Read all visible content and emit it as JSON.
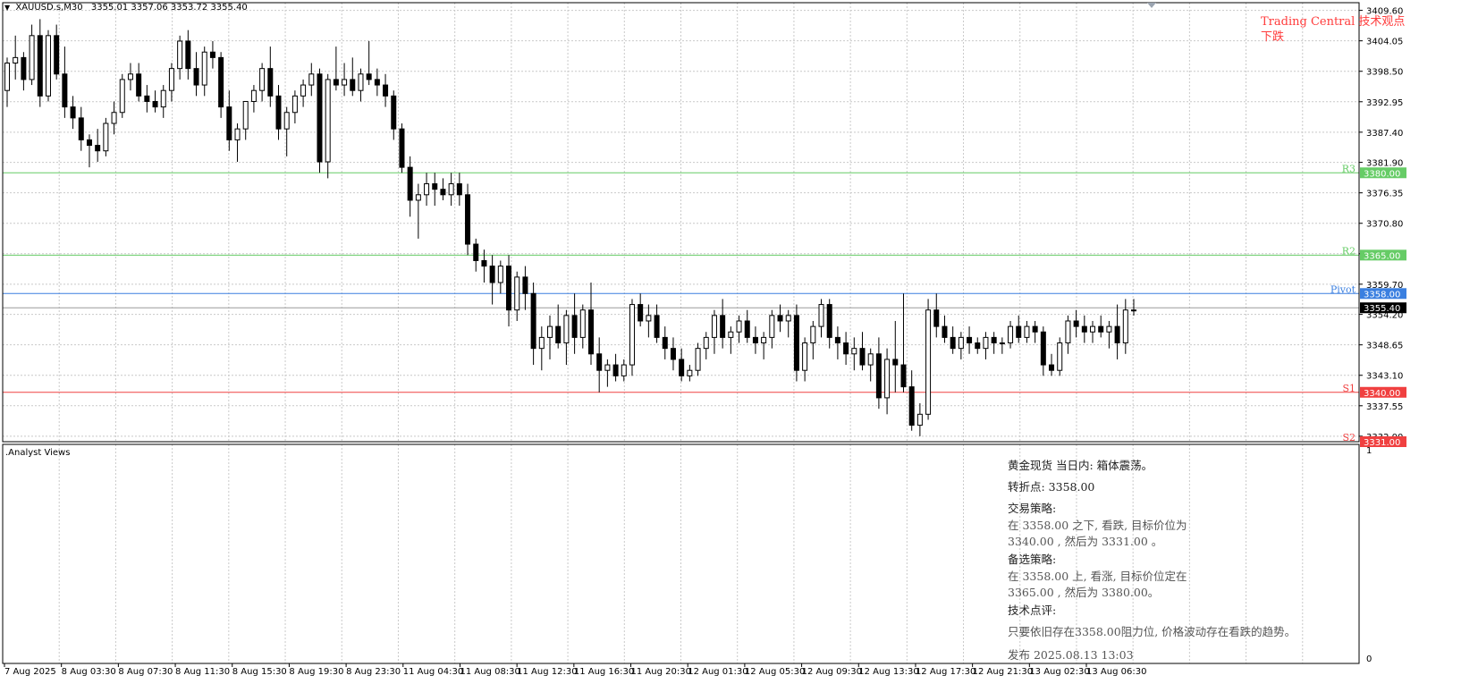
{
  "chart_header": {
    "symbol_timeframe": "XAUUSD.s,M30",
    "ohlc": "3355.01 3357.06 3353.72 3355.40",
    "dropdown_glyph": "▼"
  },
  "trading_central": {
    "title": "Trading Central 技术观点",
    "view": "下跌"
  },
  "subwindow": {
    "title": ".Analyst Views",
    "scale_top": "1",
    "scale_bottom": "0"
  },
  "analysis": {
    "line1": "黄金现货 当日内: 箱体震荡。",
    "line2": "转折点: 3358.00",
    "line3": "交易策略:",
    "line4": "在 3358.00 之下, 看跌, 目标价位为",
    "line5": "3340.00 , 然后为 3331.00 。",
    "line6": "备选策略:",
    "line7": "在 3358.00  上, 看涨, 目标价位定在",
    "line8": "3365.00 , 然后为 3380.00。",
    "line9": "技术点评:",
    "line10": "只要依旧存在3358.00阻力位, 价格波动存在看跌的趋势。",
    "line11": "发布 2025.08.13 13:03"
  },
  "colors": {
    "grid": "#c9c9c9",
    "r3": "#66cc66",
    "r2": "#66cc66",
    "pivot": "#3a7fe0",
    "s1": "#f04040",
    "s2": "#f04040",
    "price_tag": "#000000"
  },
  "chart_data": {
    "type": "candlestick",
    "symbol": "XAUUSD.s",
    "timeframe": "M30",
    "y_ticks": [
      "3409.60",
      "3404.05",
      "3398.50",
      "3392.95",
      "3387.40",
      "3381.90",
      "3376.35",
      "3370.80",
      "3365.25",
      "3359.70",
      "3354.20",
      "3348.65",
      "3343.10",
      "3337.55",
      "3332.00"
    ],
    "ylim": [
      3331.0,
      3411.0
    ],
    "x_ticks": [
      "7 Aug 2025",
      "8 Aug 03:30",
      "8 Aug 07:30",
      "8 Aug 11:30",
      "8 Aug 15:30",
      "8 Aug 19:30",
      "8 Aug 23:30",
      "11 Aug 04:30",
      "11 Aug 08:30",
      "11 Aug 12:30",
      "11 Aug 16:30",
      "11 Aug 20:30",
      "12 Aug 01:30",
      "12 Aug 05:30",
      "12 Aug 09:30",
      "12 Aug 13:30",
      "12 Aug 17:30",
      "12 Aug 21:30",
      "13 Aug 02:30",
      "13 Aug 06:30"
    ],
    "levels": [
      {
        "name": "R3",
        "value": 3380.0,
        "label": "3380.00",
        "color": "#66cc66"
      },
      {
        "name": "R2",
        "value": 3365.0,
        "label": "3365.00",
        "color": "#66cc66"
      },
      {
        "name": "Pivot",
        "value": 3358.0,
        "label": "3358.00",
        "color": "#3a7fe0"
      },
      {
        "name": "S1",
        "value": 3340.0,
        "label": "3340.00",
        "color": "#f04040"
      },
      {
        "name": "S2",
        "value": 3331.0,
        "label": "3331.00",
        "color": "#f04040"
      }
    ],
    "current_price": {
      "value": 3355.4,
      "label": "3355.40"
    },
    "candles": [
      [
        3395,
        3401,
        3392,
        3400
      ],
      [
        3400,
        3405,
        3397,
        3401
      ],
      [
        3401,
        3402,
        3395,
        3397
      ],
      [
        3397,
        3407,
        3396,
        3405
      ],
      [
        3405,
        3408,
        3392,
        3394
      ],
      [
        3394,
        3406,
        3393,
        3405
      ],
      [
        3405,
        3407,
        3397,
        3398
      ],
      [
        3398,
        3403,
        3390,
        3392
      ],
      [
        3392,
        3394,
        3388,
        3390
      ],
      [
        3390,
        3392,
        3384,
        3386
      ],
      [
        3386,
        3387,
        3381,
        3385
      ],
      [
        3385,
        3388,
        3382,
        3384
      ],
      [
        3384,
        3390,
        3383,
        3389
      ],
      [
        3389,
        3393,
        3387,
        3391
      ],
      [
        3391,
        3398,
        3390,
        3397
      ],
      [
        3397,
        3400,
        3395,
        3398
      ],
      [
        3398,
        3400,
        3393,
        3394
      ],
      [
        3394,
        3396,
        3391,
        3393
      ],
      [
        3393,
        3395,
        3391,
        3392
      ],
      [
        3392,
        3396,
        3390,
        3395
      ],
      [
        3395,
        3400,
        3393,
        3399
      ],
      [
        3399,
        3405,
        3397,
        3404
      ],
      [
        3404,
        3406,
        3397,
        3399
      ],
      [
        3399,
        3402,
        3394,
        3396
      ],
      [
        3396,
        3403,
        3394,
        3402
      ],
      [
        3402,
        3404,
        3399,
        3401
      ],
      [
        3401,
        3402,
        3390,
        3392
      ],
      [
        3392,
        3395,
        3384,
        3386
      ],
      [
        3386,
        3389,
        3382,
        3388
      ],
      [
        3388,
        3393,
        3386,
        3393
      ],
      [
        3393,
        3396,
        3391,
        3395
      ],
      [
        3395,
        3400,
        3393,
        3399
      ],
      [
        3399,
        3403,
        3392,
        3394
      ],
      [
        3394,
        3396,
        3386,
        3388
      ],
      [
        3388,
        3392,
        3383,
        3391
      ],
      [
        3391,
        3395,
        3389,
        3394
      ],
      [
        3394,
        3397,
        3392,
        3396
      ],
      [
        3396,
        3400,
        3394,
        3398
      ],
      [
        3398,
        3399,
        3380,
        3382
      ],
      [
        3382,
        3398,
        3379,
        3397
      ],
      [
        3397,
        3403,
        3395,
        3396
      ],
      [
        3396,
        3400,
        3394,
        3397
      ],
      [
        3397,
        3401,
        3394,
        3395
      ],
      [
        3395,
        3399,
        3393,
        3398
      ],
      [
        3398,
        3404,
        3396,
        3397
      ],
      [
        3397,
        3399,
        3394,
        3396
      ],
      [
        3396,
        3398,
        3392,
        3394
      ],
      [
        3394,
        3395,
        3386,
        3388
      ],
      [
        3388,
        3389,
        3380,
        3381
      ],
      [
        3381,
        3383,
        3372,
        3375
      ],
      [
        3375,
        3378,
        3368,
        3376
      ],
      [
        3376,
        3380,
        3374,
        3378
      ],
      [
        3378,
        3380,
        3374,
        3377
      ],
      [
        3377,
        3379,
        3375,
        3376
      ],
      [
        3376,
        3380,
        3374,
        3378
      ],
      [
        3378,
        3380,
        3374,
        3376
      ],
      [
        3376,
        3378,
        3365,
        3367
      ],
      [
        3367,
        3368,
        3362,
        3364
      ],
      [
        3364,
        3366,
        3360,
        3363
      ],
      [
        3363,
        3365,
        3356,
        3360
      ],
      [
        3360,
        3364,
        3358,
        3363
      ],
      [
        3363,
        3365,
        3352,
        3355
      ],
      [
        3355,
        3362,
        3353,
        3361
      ],
      [
        3361,
        3363,
        3355,
        3358
      ],
      [
        3358,
        3360,
        3345,
        3348
      ],
      [
        3348,
        3352,
        3344,
        3350
      ],
      [
        3350,
        3354,
        3346,
        3352
      ],
      [
        3352,
        3356,
        3348,
        3349
      ],
      [
        3349,
        3355,
        3345,
        3354
      ],
      [
        3354,
        3358,
        3347,
        3350
      ],
      [
        3350,
        3356,
        3348,
        3355
      ],
      [
        3355,
        3360,
        3345,
        3347
      ],
      [
        3347,
        3350,
        3340,
        3344
      ],
      [
        3344,
        3346,
        3341,
        3345
      ],
      [
        3345,
        3347,
        3342,
        3343
      ],
      [
        3343,
        3346,
        3342,
        3345
      ],
      [
        3345,
        3357,
        3343,
        3356
      ],
      [
        3356,
        3358,
        3352,
        3353
      ],
      [
        3353,
        3356,
        3350,
        3354
      ],
      [
        3354,
        3356,
        3349,
        3350
      ],
      [
        3350,
        3352,
        3346,
        3348
      ],
      [
        3348,
        3350,
        3344,
        3346
      ],
      [
        3346,
        3348,
        3342,
        3343
      ],
      [
        3343,
        3345,
        3342,
        3344
      ],
      [
        3344,
        3349,
        3343,
        3348
      ],
      [
        3348,
        3351,
        3346,
        3350
      ],
      [
        3350,
        3355,
        3347,
        3354
      ],
      [
        3354,
        3357,
        3348,
        3350
      ],
      [
        3350,
        3352,
        3347,
        3351
      ],
      [
        3351,
        3354,
        3349,
        3353
      ],
      [
        3353,
        3355,
        3349,
        3350
      ],
      [
        3350,
        3352,
        3347,
        3349
      ],
      [
        3349,
        3351,
        3346,
        3350
      ],
      [
        3350,
        3355,
        3348,
        3354
      ],
      [
        3354,
        3356,
        3351,
        3353
      ],
      [
        3353,
        3355,
        3350,
        3354
      ],
      [
        3354,
        3356,
        3342,
        3344
      ],
      [
        3344,
        3350,
        3342,
        3349
      ],
      [
        3349,
        3353,
        3346,
        3352
      ],
      [
        3352,
        3357,
        3350,
        3356
      ],
      [
        3356,
        3357,
        3348,
        3350
      ],
      [
        3350,
        3352,
        3346,
        3349
      ],
      [
        3349,
        3351,
        3345,
        3347
      ],
      [
        3347,
        3350,
        3344,
        3348
      ],
      [
        3348,
        3351,
        3344,
        3345
      ],
      [
        3345,
        3348,
        3342,
        3347
      ],
      [
        3347,
        3350,
        3337,
        3339
      ],
      [
        3339,
        3348,
        3336,
        3346
      ],
      [
        3346,
        3353,
        3340,
        3345
      ],
      [
        3345,
        3358,
        3340,
        3341
      ],
      [
        3341,
        3344,
        3333,
        3334
      ],
      [
        3334,
        3338,
        3332,
        3336
      ],
      [
        3336,
        3357,
        3335,
        3355
      ],
      [
        3355,
        3358,
        3350,
        3352
      ],
      [
        3352,
        3354,
        3349,
        3350
      ],
      [
        3350,
        3352,
        3347,
        3348
      ],
      [
        3348,
        3351,
        3346,
        3350
      ],
      [
        3350,
        3352,
        3347,
        3349
      ],
      [
        3349,
        3350,
        3347,
        3348
      ],
      [
        3348,
        3351,
        3346,
        3350
      ],
      [
        3350,
        3351,
        3347,
        3349
      ],
      [
        3349,
        3350,
        3347,
        3349
      ],
      [
        3349,
        3353,
        3348,
        3352
      ],
      [
        3352,
        3354,
        3349,
        3350
      ],
      [
        3350,
        3353,
        3349,
        3352
      ],
      [
        3352,
        3353,
        3349,
        3351
      ],
      [
        3351,
        3352,
        3343,
        3345
      ],
      [
        3345,
        3347,
        3343,
        3344
      ],
      [
        3344,
        3350,
        3343,
        3349
      ],
      [
        3349,
        3354,
        3347,
        3353
      ],
      [
        3353,
        3355,
        3350,
        3352
      ],
      [
        3352,
        3354,
        3349,
        3351
      ],
      [
        3351,
        3353,
        3349,
        3352
      ],
      [
        3352,
        3354,
        3350,
        3351
      ],
      [
        3351,
        3353,
        3348,
        3352
      ],
      [
        3352,
        3356,
        3346,
        3349
      ],
      [
        3349,
        3357,
        3347,
        3355
      ],
      [
        3355,
        3357,
        3354,
        3355
      ]
    ]
  }
}
